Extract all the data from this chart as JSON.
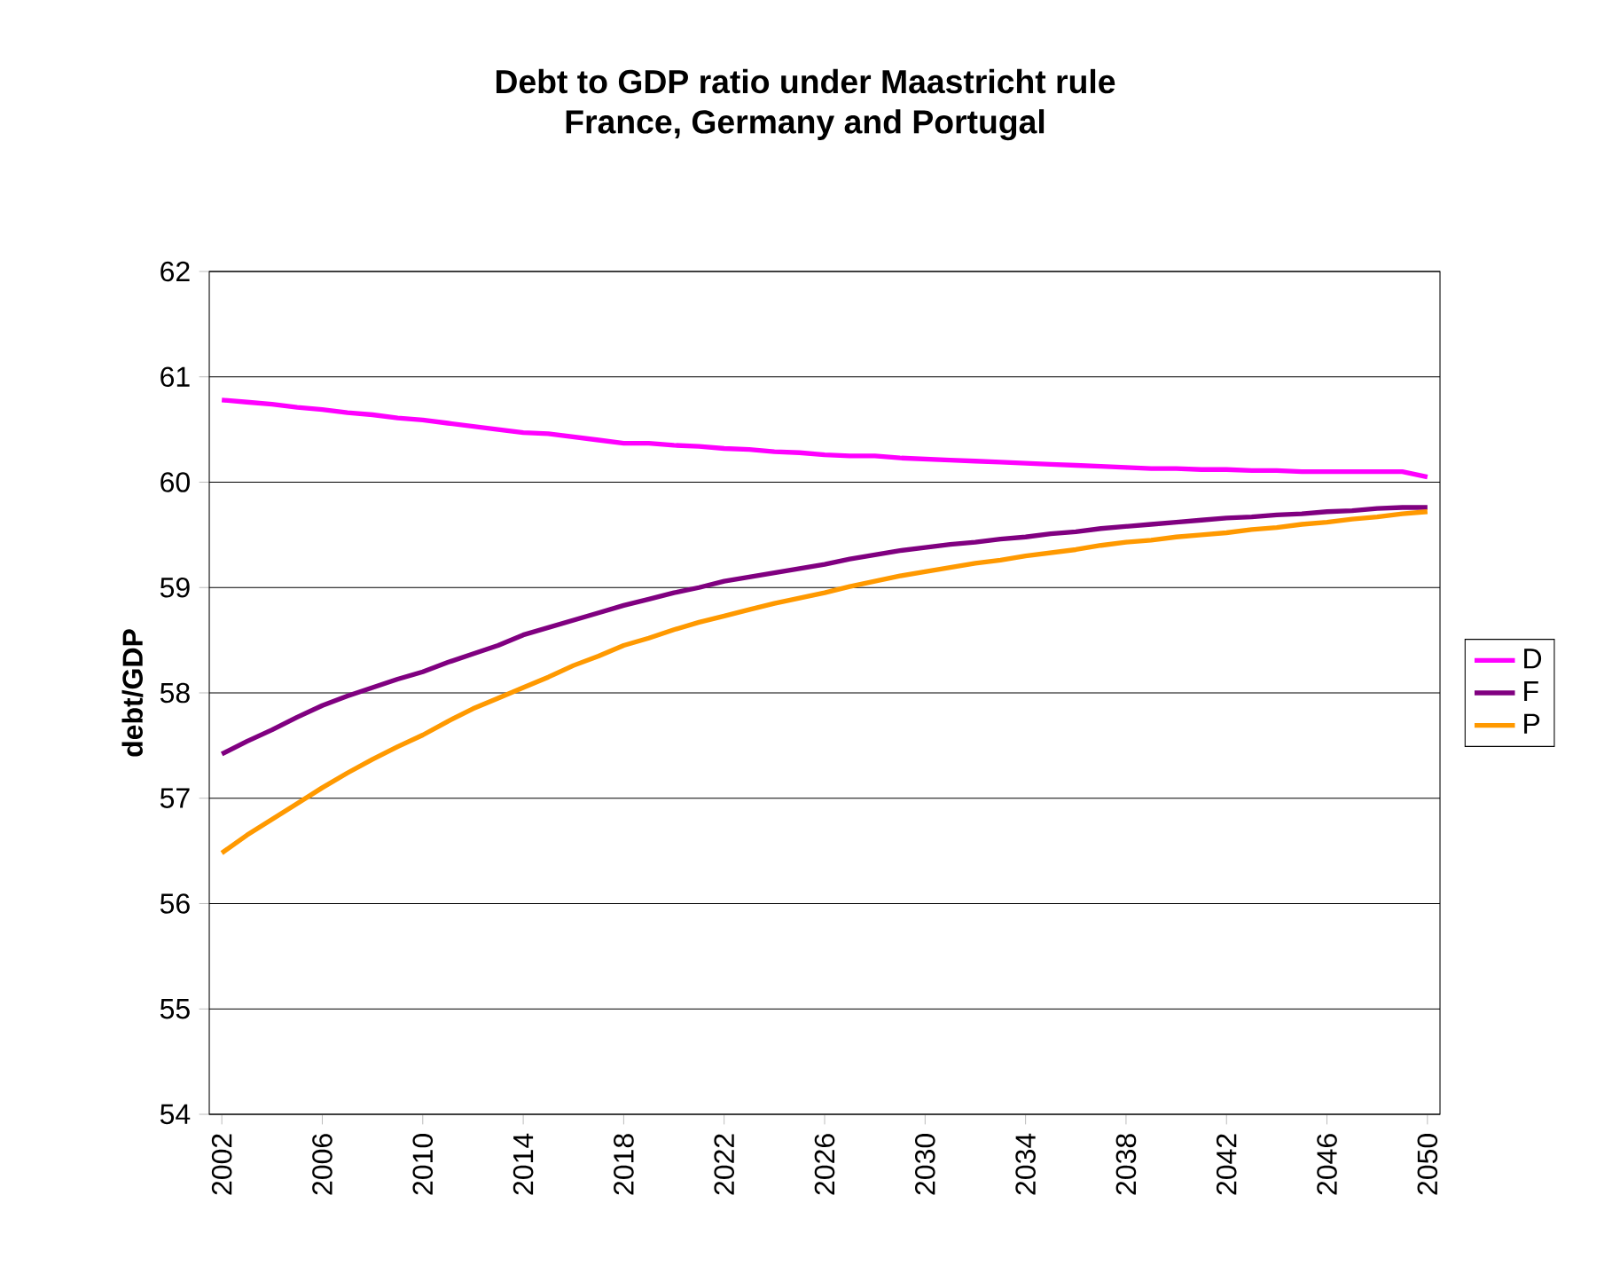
{
  "chart_data": {
    "type": "line",
    "title": "Debt to GDP ratio under Maastricht rule",
    "subtitle": "France, Germany and Portugal",
    "ylabel": "debt/GDP",
    "categories": [
      "2002",
      null,
      null,
      null,
      "2006",
      null,
      null,
      null,
      "2010",
      null,
      null,
      null,
      "2014",
      null,
      null,
      null,
      "2018",
      null,
      null,
      null,
      "2022",
      null,
      null,
      null,
      "2026",
      null,
      null,
      null,
      "2030",
      null,
      null,
      null,
      "2034",
      null,
      null,
      null,
      "2038",
      null,
      null,
      null,
      "2042",
      null,
      null,
      null,
      "2046",
      null,
      null,
      null,
      "2050"
    ],
    "series": [
      {
        "name": "D",
        "color": "#ff00ff",
        "values": [
          60.78,
          60.76,
          60.74,
          60.71,
          60.69,
          60.66,
          60.64,
          60.61,
          60.59,
          60.56,
          60.53,
          60.5,
          60.47,
          60.46,
          60.43,
          60.4,
          60.37,
          60.37,
          60.35,
          60.34,
          60.32,
          60.31,
          60.29,
          60.28,
          60.26,
          60.25,
          60.25,
          60.23,
          60.22,
          60.21,
          60.2,
          60.19,
          60.18,
          60.17,
          60.16,
          60.15,
          60.14,
          60.13,
          60.13,
          60.12,
          60.12,
          60.11,
          60.11,
          60.1,
          60.1,
          60.1,
          60.1,
          60.1,
          60.05
        ]
      },
      {
        "name": "F",
        "color": "#800080",
        "values": [
          57.42,
          57.54,
          57.65,
          57.77,
          57.88,
          57.97,
          58.05,
          58.13,
          58.2,
          58.29,
          58.37,
          58.45,
          58.55,
          58.62,
          58.69,
          58.76,
          58.83,
          58.89,
          58.95,
          59.0,
          59.06,
          59.1,
          59.14,
          59.18,
          59.22,
          59.27,
          59.31,
          59.35,
          59.38,
          59.41,
          59.43,
          59.46,
          59.48,
          59.51,
          59.53,
          59.56,
          59.58,
          59.6,
          59.62,
          59.64,
          59.66,
          59.67,
          59.69,
          59.7,
          59.72,
          59.73,
          59.75,
          59.76,
          59.76
        ]
      },
      {
        "name": "P",
        "color": "#ff9900",
        "values": [
          56.48,
          56.65,
          56.8,
          56.95,
          57.1,
          57.24,
          57.37,
          57.49,
          57.6,
          57.73,
          57.85,
          57.95,
          58.05,
          58.15,
          58.26,
          58.35,
          58.45,
          58.52,
          58.6,
          58.67,
          58.73,
          58.79,
          58.85,
          58.9,
          58.95,
          59.01,
          59.06,
          59.11,
          59.15,
          59.19,
          59.23,
          59.26,
          59.3,
          59.33,
          59.36,
          59.4,
          59.43,
          59.45,
          59.48,
          59.5,
          59.52,
          59.55,
          59.57,
          59.6,
          59.62,
          59.65,
          59.67,
          59.7,
          59.72
        ]
      }
    ],
    "ylim": [
      54,
      62
    ],
    "yticks": [
      54,
      55,
      56,
      57,
      58,
      59,
      60,
      61,
      62
    ],
    "grid": "y",
    "legend": "right",
    "marker": "none",
    "line_style": "solid"
  }
}
